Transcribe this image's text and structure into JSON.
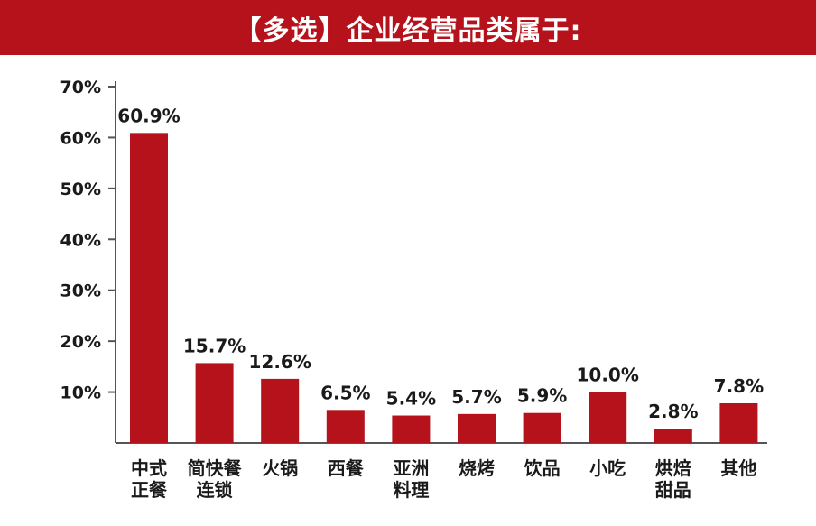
{
  "header": {
    "title": "【多选】企业经营品类属于:",
    "background_color": "#b5121b"
  },
  "chart_data": {
    "type": "bar",
    "title": "【多选】企业经营品类属于:",
    "xlabel": "",
    "ylabel": "",
    "categories": [
      [
        "中式",
        "正餐"
      ],
      [
        "简快餐",
        "连锁"
      ],
      [
        "火锅"
      ],
      [
        "西餐"
      ],
      [
        "亚洲",
        "料理"
      ],
      [
        "烧烤"
      ],
      [
        "饮品"
      ],
      [
        "小吃"
      ],
      [
        "烘焙",
        "甜品"
      ],
      [
        "其他"
      ]
    ],
    "values": [
      60.9,
      15.7,
      12.6,
      6.5,
      5.4,
      5.7,
      5.9,
      10.0,
      2.8,
      7.8
    ],
    "value_labels": [
      "60.9%",
      "15.7%",
      "12.6%",
      "6.5%",
      "5.4%",
      "5.7%",
      "5.9%",
      "10.0%",
      "2.8%",
      "7.8%"
    ],
    "yticks": [
      10,
      20,
      30,
      40,
      50,
      60,
      70
    ],
    "ytick_labels": [
      "10%",
      "20%",
      "30%",
      "40%",
      "50%",
      "60%",
      "70%"
    ],
    "ylim": [
      0,
      70
    ],
    "bar_color": "#b5121b",
    "grid": false,
    "legend": "none"
  }
}
